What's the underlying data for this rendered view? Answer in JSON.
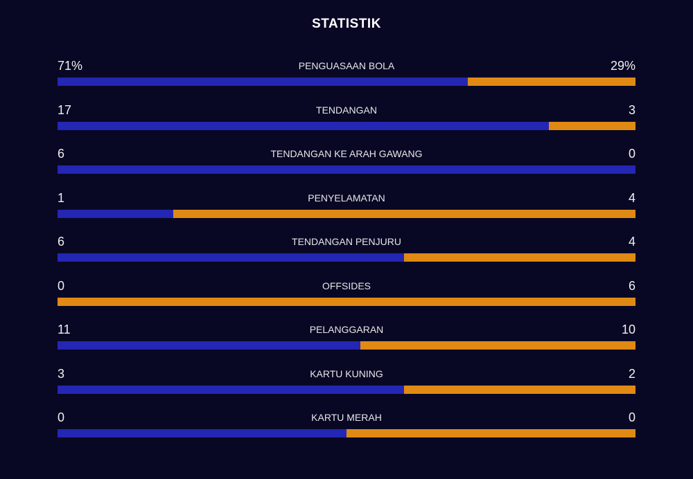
{
  "title": "STATISTIK",
  "colors": {
    "home": "#2426b4",
    "away": "#e08a14",
    "background": "#080824"
  },
  "stats": [
    {
      "label": "PENGUASAAN BOLA",
      "home": "71%",
      "away": "29%",
      "home_fraction": 0.71
    },
    {
      "label": "TENDANGAN",
      "home": "17",
      "away": "3",
      "home_fraction": 0.85
    },
    {
      "label": "TENDANGAN KE ARAH GAWANG",
      "home": "6",
      "away": "0",
      "home_fraction": 1.0
    },
    {
      "label": "PENYELAMATAN",
      "home": "1",
      "away": "4",
      "home_fraction": 0.2
    },
    {
      "label": "TENDANGAN PENJURU",
      "home": "6",
      "away": "4",
      "home_fraction": 0.6
    },
    {
      "label": "OFFSIDES",
      "home": "0",
      "away": "6",
      "home_fraction": 0.0
    },
    {
      "label": "PELANGGARAN",
      "home": "11",
      "away": "10",
      "home_fraction": 0.524
    },
    {
      "label": "KARTU KUNING",
      "home": "3",
      "away": "2",
      "home_fraction": 0.6
    },
    {
      "label": "KARTU MERAH",
      "home": "0",
      "away": "0",
      "home_fraction": 0.5
    }
  ]
}
